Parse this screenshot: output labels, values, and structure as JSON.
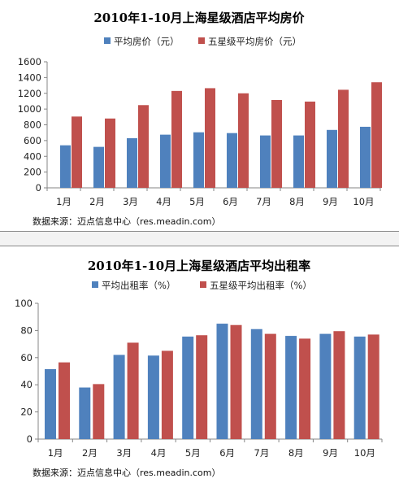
{
  "chart_data": [
    {
      "type": "bar",
      "title": "2010年1-10月上海星级酒店平均房价",
      "categories": [
        "1月",
        "2月",
        "3月",
        "4月",
        "5月",
        "6月",
        "7月",
        "8月",
        "9月",
        "10月"
      ],
      "series": [
        {
          "name": "平均房价（元）",
          "color": "#4f81bd",
          "values": [
            540,
            520,
            630,
            675,
            705,
            695,
            665,
            665,
            735,
            775
          ]
        },
        {
          "name": "五星级平均房价（元）",
          "color": "#c0504d",
          "values": [
            905,
            880,
            1050,
            1230,
            1265,
            1200,
            1115,
            1095,
            1245,
            1340
          ]
        }
      ],
      "yticks": [
        0,
        200,
        400,
        600,
        800,
        1000,
        1200,
        1400,
        1600
      ],
      "ylim": [
        0,
        1600
      ],
      "grid": false,
      "legend": "top",
      "source": "数据来源：迈点信息中心（res.meadin.com）"
    },
    {
      "type": "bar",
      "title": "2010年1-10月上海星级酒店平均出租率",
      "categories": [
        "1月",
        "2月",
        "3月",
        "4月",
        "5月",
        "6月",
        "7月",
        "8月",
        "9月",
        "10月"
      ],
      "series": [
        {
          "name": "平均出租率（%）",
          "color": "#4f81bd",
          "values": [
            51.5,
            38,
            62,
            61.5,
            75.5,
            85,
            81,
            76,
            77.5,
            75.5
          ]
        },
        {
          "name": "五星级平均出租率（%）",
          "color": "#c0504d",
          "values": [
            56.5,
            40.5,
            71,
            65,
            76.5,
            84,
            77.5,
            74,
            79.5,
            77
          ]
        }
      ],
      "yticks": [
        0,
        20,
        40,
        60,
        80,
        100
      ],
      "ylim": [
        0,
        100
      ],
      "grid": false,
      "legend": "top",
      "source": "数据来源：迈点信息中心（res.meadin.com）"
    }
  ]
}
